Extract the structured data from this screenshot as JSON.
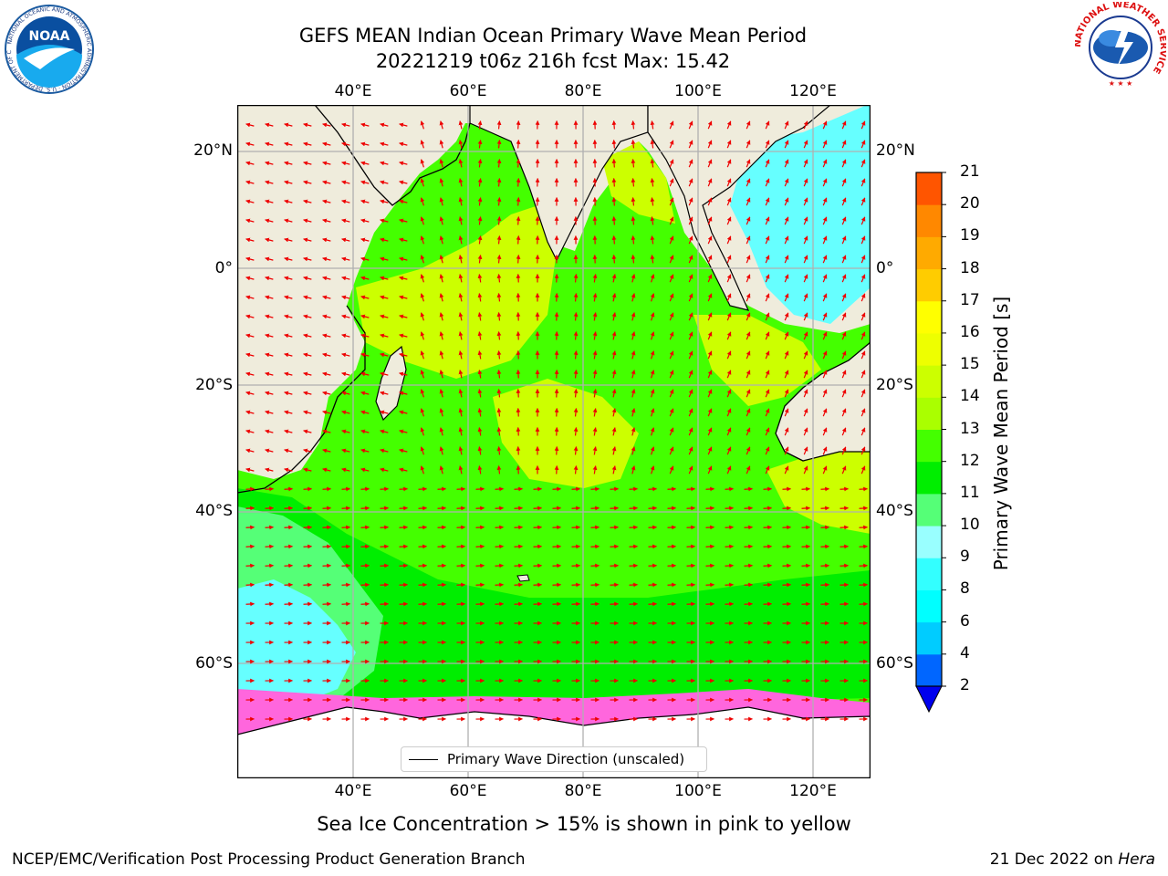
{
  "title_line1": "GEFS MEAN Indian Ocean Primary Wave Mean Period",
  "title_line2": "20221219 t06z 216h fcst   Max: 15.42",
  "caption": "Sea Ice Concentration > 15% is shown in pink to yellow",
  "footer_left": "NCEP/EMC/Verification Post Processing Product Generation Branch",
  "footer_right_date": "21 Dec 2022 on ",
  "footer_right_host": "Hera",
  "legend_label": "Primary Wave Direction (unscaled)",
  "logos": {
    "left": {
      "name": "NOARA-logo",
      "text": "NOAA",
      "ring_text": "NATIONAL OCEANIC AND ATMOSPHERIC ADMINISTRATION · U.S. DEPARTMENT OF COMMERCE"
    },
    "right": {
      "name": "nws-logo",
      "ring_text": "NATIONAL WEATHER SERVICE"
    }
  },
  "map": {
    "lon_labels": [
      "40°E",
      "60°E",
      "80°E",
      "100°E",
      "120°E"
    ],
    "lat_labels": [
      "20°N",
      "0°",
      "20°S",
      "40°S",
      "60°S"
    ]
  },
  "colorbar": {
    "label": "Primary Wave Mean Period [s]",
    "ticks": [
      "2",
      "4",
      "6",
      "8",
      "9",
      "10",
      "11",
      "12",
      "13",
      "14",
      "15",
      "16",
      "17",
      "18",
      "19",
      "20",
      "21"
    ],
    "colors": [
      "#0066ff",
      "#00ccff",
      "#00ffff",
      "#33ffff",
      "#99ffff",
      "#55ff77",
      "#00ee00",
      "#44ff00",
      "#aaff00",
      "#ccff00",
      "#eeff00",
      "#ffff00",
      "#ffcc00",
      "#ffaa00",
      "#ff8800",
      "#ff5500",
      "#ff2200",
      "#ff0000"
    ],
    "extend_color": "#0000ee"
  },
  "colors": {
    "land": "#efecdc",
    "arrow": "#ee0000",
    "grid": "#b0b0b0"
  }
}
